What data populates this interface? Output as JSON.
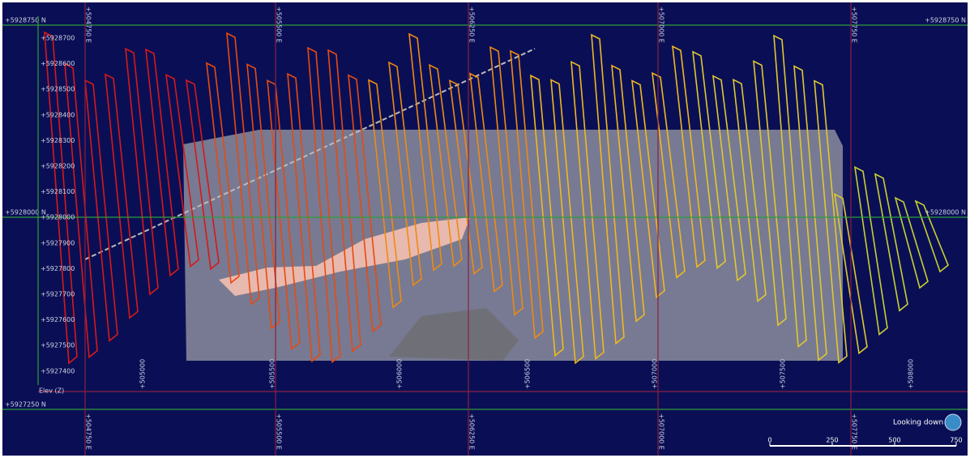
{
  "grid": {
    "north_major_left": [
      "+5928750 N",
      "+5928000 N",
      "+5927250 N"
    ],
    "north_major_right": [
      "+5928750 N",
      "+5928000 N"
    ],
    "north_minor": [
      "+5928700",
      "+5928600",
      "+5928500",
      "+5928400",
      "+5928300",
      "+5928200",
      "+5928100",
      "+5928000",
      "+5927900",
      "+5927800",
      "+5927700",
      "+5927600",
      "+5927500",
      "+5927400"
    ],
    "east_major_top": [
      "+504750 E",
      "+505500 E",
      "+506250 E",
      "+507000 E",
      "+507750 E"
    ],
    "east_major_bottom": [
      "+504750 E",
      "+505500 E",
      "+506250 E",
      "+507000 E",
      "+507750 E"
    ],
    "east_minor": [
      "+505000",
      "+505500",
      "+506000",
      "+506500",
      "+507000",
      "+507500",
      "+508000"
    ]
  },
  "elev_label": "Elev (Z)",
  "view_label": "Looking down",
  "scale_bar": [
    "0",
    "250",
    "500",
    "750"
  ]
}
